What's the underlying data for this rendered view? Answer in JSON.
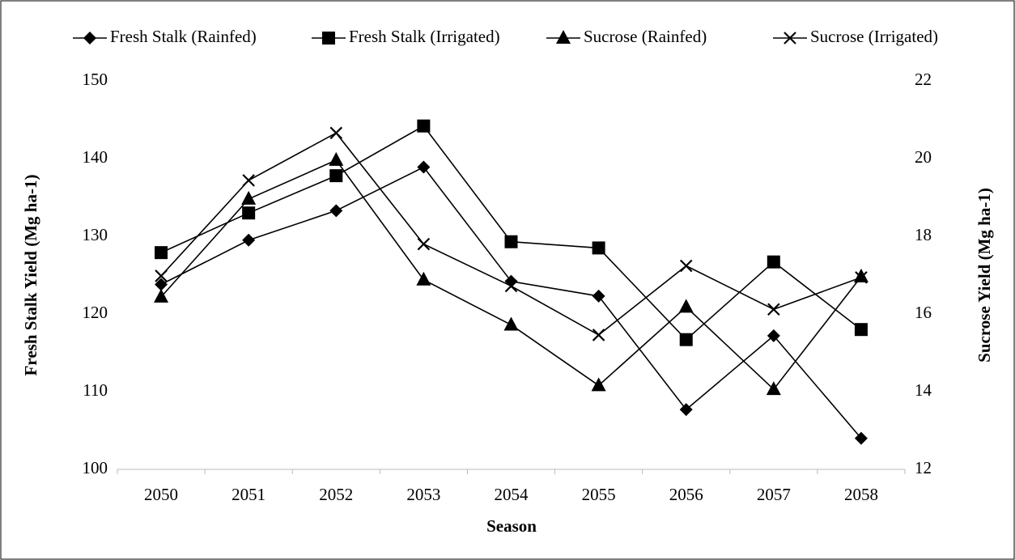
{
  "chart_data": {
    "type": "line",
    "xlabel": "Season",
    "ylabel": "Fresh Stalk Yield (Mg ha-1)",
    "y2label": "Sucrose Yield  (Mg ha-1)",
    "categories": [
      "2050",
      "2051",
      "2052",
      "2053",
      "2054",
      "2055",
      "2056",
      "2057",
      "2058"
    ],
    "ylim": [
      100,
      150
    ],
    "yticks": [
      100,
      110,
      120,
      130,
      140,
      150
    ],
    "y2lim": [
      12,
      22
    ],
    "y2ticks": [
      12,
      14,
      16,
      18,
      20,
      22
    ],
    "legend": "top",
    "series": [
      {
        "name": "Fresh Stalk (Rainfed)",
        "color": "#000000",
        "marker": "diamond",
        "values": [
          123.8,
          129.5,
          133.3,
          138.9,
          124.2,
          122.3,
          107.7,
          117.2,
          104.0
        ]
      },
      {
        "name": "Fresh Stalk (Irrigated)",
        "color": "#000000",
        "marker": "square",
        "values": [
          127.9,
          133.0,
          137.8,
          144.2,
          129.3,
          128.5,
          116.7,
          126.7,
          118.0
        ]
      },
      {
        "name": "Sucrose (Rainfed)",
        "color": "#000000",
        "marker": "triangle",
        "axis": "y2",
        "values": [
          16.44,
          18.96,
          19.96,
          16.88,
          15.72,
          14.16,
          16.18,
          14.06,
          16.96
        ]
      },
      {
        "name": "Sucrose (Irrigated)",
        "color": "#000000",
        "marker": "x",
        "axis": "y2",
        "values": [
          16.98,
          19.44,
          20.66,
          17.8,
          16.72,
          15.46,
          17.24,
          16.12,
          16.94
        ]
      }
    ]
  }
}
